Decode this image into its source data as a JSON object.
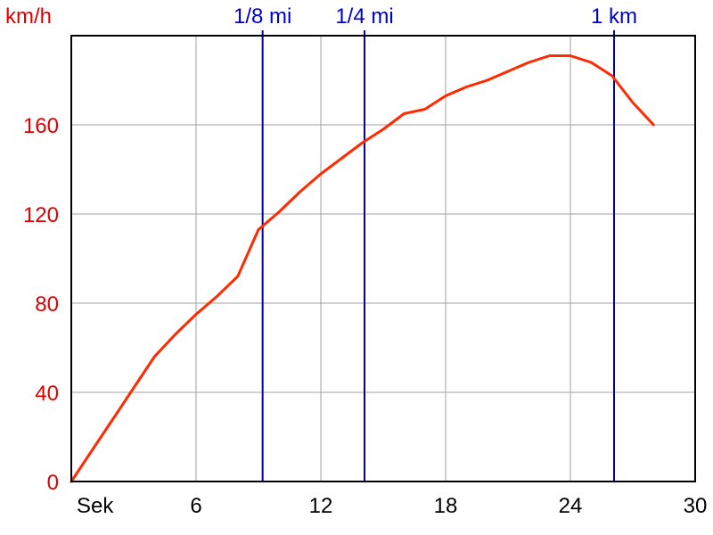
{
  "chart_data": {
    "type": "line",
    "ylabel": "km/h",
    "xlabel": "Sek",
    "xlim": [
      0,
      30
    ],
    "ylim": [
      0,
      200
    ],
    "x_ticks": [
      6,
      12,
      18,
      24,
      30
    ],
    "y_ticks": [
      0,
      40,
      80,
      120,
      160
    ],
    "grid": true,
    "colors": {
      "series": "#ff2a00",
      "markers": "#0000aa",
      "y_axis_text": "#e00000",
      "marker_text": "#0000cc",
      "grid": "#a0a0a0"
    },
    "markers": [
      {
        "label": "1/8 mi",
        "x": 9.2
      },
      {
        "label": "1/4 mi",
        "x": 14.1
      },
      {
        "label": "1 km",
        "x": 26.1
      }
    ],
    "series": [
      {
        "x": [
          0,
          1,
          2,
          3,
          4,
          5,
          6,
          7,
          8,
          9,
          10,
          11,
          12,
          13,
          14,
          15,
          16,
          17,
          18,
          19,
          20,
          21,
          22,
          23,
          24,
          25,
          26,
          27,
          28
        ],
        "y": [
          0,
          14,
          28,
          42,
          56,
          66,
          75,
          83,
          92,
          113,
          121,
          130,
          138,
          145,
          152,
          158,
          165,
          167,
          173,
          177,
          180,
          184,
          188,
          191,
          191,
          188,
          182,
          170,
          160
        ]
      }
    ]
  }
}
